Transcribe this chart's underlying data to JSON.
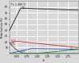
{
  "title": "T = 1 200 °C",
  "xlabel": "λ",
  "ylabel": "Molar fractions (%)",
  "xlim": [
    0.33,
    2.0
  ],
  "ylim": [
    0,
    90
  ],
  "xticks": [
    0.5,
    0.75,
    1.0,
    1.25,
    1.5,
    1.75
  ],
  "yticks": [
    10,
    20,
    30,
    40,
    50,
    60,
    70,
    80
  ],
  "background_color": "#d8d8d8",
  "grid_color": "#ffffff",
  "colors": {
    "N2": "#111111",
    "CH4": "#444444",
    "CO2": "#3355cc",
    "H2O": "#cc2222",
    "O2": "#118811"
  },
  "figsize": [
    1.0,
    0.8
  ],
  "dpi": 100
}
